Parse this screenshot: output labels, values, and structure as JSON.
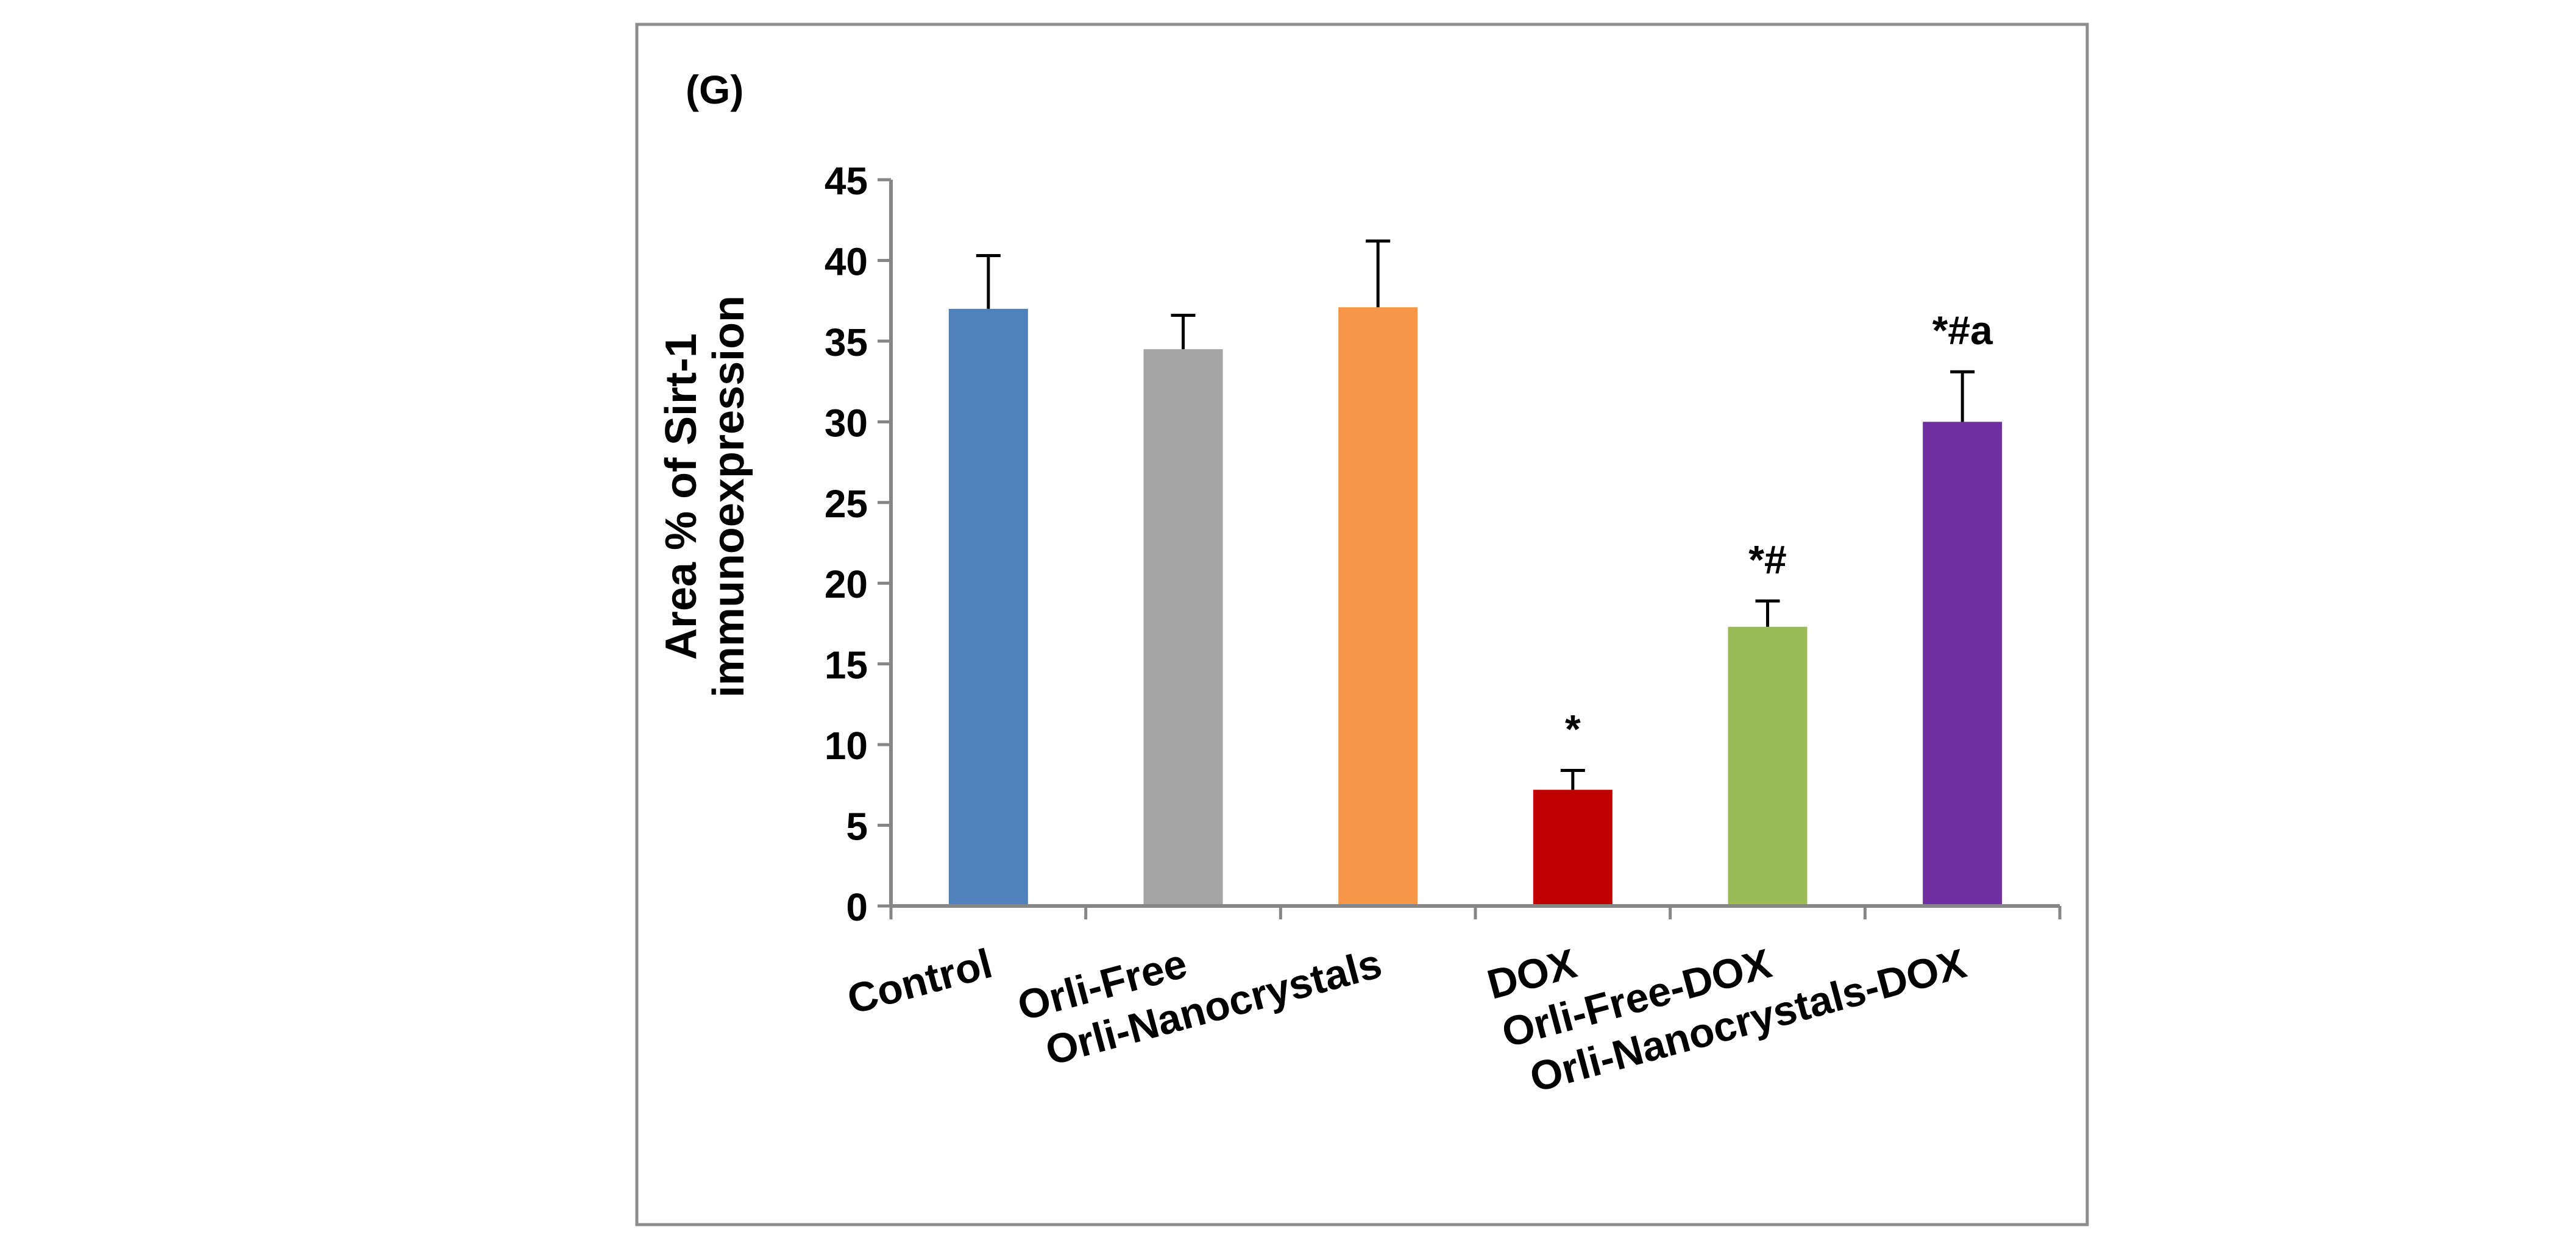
{
  "panel_label": "(G)",
  "chart_data": {
    "type": "bar",
    "title": "",
    "xlabel": "",
    "ylabel": "Area % of Sirt-1 immunoexpression",
    "ylabel_lines": [
      "Area % of Sirt-1",
      "immunoexpression"
    ],
    "ylim": [
      0,
      45
    ],
    "yticks": [
      0,
      5,
      10,
      15,
      20,
      25,
      30,
      35,
      40,
      45
    ],
    "grid": false,
    "legend": "none",
    "categories": [
      "Control",
      "Orli-Free",
      "Orli-Nanocrystals",
      "DOX",
      "Orli-Free-DOX",
      "Orli-Nanocrystals-DOX"
    ],
    "values": [
      37.0,
      34.5,
      37.1,
      7.2,
      17.3,
      30.0
    ],
    "errors": [
      3.3,
      2.1,
      4.1,
      1.2,
      1.6,
      3.1
    ],
    "annotations": [
      "",
      "",
      "",
      "*",
      "*#",
      "*#a"
    ],
    "colors": [
      "#4f81bd",
      "#a5a5a5",
      "#f79646",
      "#c00000",
      "#9bbb59",
      "#7030a0"
    ]
  }
}
